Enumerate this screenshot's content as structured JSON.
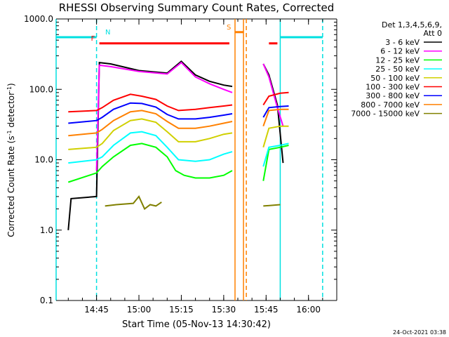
{
  "chart_data": {
    "type": "line",
    "title": "RHESSI Observing Summary Count Rates, Corrected",
    "xlabel": "Start Time (05-Nov-13 14:30:42)",
    "ylabel": "Corrected Count Rate (s⁻¹ detector⁻¹)",
    "ylabel_main": "Corrected Count Rate (s",
    "ylabel_sup1": "-1",
    "ylabel_mid": " detector",
    "ylabel_sup2": "-1",
    "ylabel_end": ")",
    "y_scale": "log",
    "ylim": [
      0.1,
      1000
    ],
    "xlim": [
      "14:30:42",
      "16:10:00"
    ],
    "x_ticks": [
      "14:45",
      "15:00",
      "15:15",
      "15:30",
      "15:45",
      "16:00"
    ],
    "y_ticks": [
      "0.1",
      "1.0",
      "10.0",
      "100.0",
      "1000.0"
    ],
    "legend_header": [
      "Det 1,3,4,5,6,9,",
      "Att 0"
    ],
    "legend_position": "right",
    "footer_date": "24-Oct-2021 03:38",
    "series": [
      {
        "name": "3 - 6 keV",
        "color": "#000000",
        "x": [
          "14:35",
          "14:36",
          "14:45",
          "14:46",
          "14:50",
          "15:00",
          "15:10",
          "15:15",
          "15:20",
          "15:25",
          "15:30",
          "15:33",
          "15:38",
          "15:44",
          "15:46",
          "15:49",
          "15:51"
        ],
        "y": [
          1.0,
          2.8,
          3.0,
          240,
          230,
          185,
          170,
          250,
          160,
          130,
          115,
          110,
          null,
          230,
          160,
          60,
          9
        ]
      },
      {
        "name": "6 - 12 keV",
        "color": "#ff00ff",
        "x": [
          "14:35",
          "14:45",
          "14:46",
          "14:50",
          "15:00",
          "15:10",
          "15:15",
          "15:20",
          "15:25",
          "15:30",
          "15:33",
          "15:38",
          "15:44",
          "15:46",
          "15:49",
          "15:51"
        ],
        "y": [
          null,
          7.0,
          220,
          210,
          180,
          165,
          240,
          150,
          120,
          100,
          90,
          null,
          230,
          150,
          55,
          30
        ]
      },
      {
        "name": "12 - 25 keV",
        "color": "#00ff00",
        "x": [
          "14:35",
          "14:45",
          "14:47",
          "14:51",
          "14:57",
          "15:01",
          "15:06",
          "15:10",
          "15:13",
          "15:16",
          "15:20",
          "15:25",
          "15:30",
          "15:33",
          "15:38",
          "15:44",
          "15:46",
          "15:50",
          "15:53"
        ],
        "y": [
          4.8,
          6.5,
          8,
          11,
          16,
          17,
          15,
          11,
          7,
          6,
          5.5,
          5.5,
          6,
          7,
          null,
          5,
          14,
          15,
          16
        ]
      },
      {
        "name": "25 - 50 keV",
        "color": "#00ffff",
        "x": [
          "14:35",
          "14:45",
          "14:47",
          "14:51",
          "14:57",
          "15:01",
          "15:06",
          "15:10",
          "15:14",
          "15:20",
          "15:25",
          "15:30",
          "15:33",
          "15:38",
          "15:44",
          "15:46",
          "15:50",
          "15:53"
        ],
        "y": [
          9,
          10,
          11,
          16,
          24,
          25,
          22,
          15,
          10,
          9.5,
          10,
          12,
          13,
          null,
          8,
          15,
          16,
          17
        ]
      },
      {
        "name": "50 - 100 keV",
        "color": "#d0d000",
        "x": [
          "14:35",
          "14:45",
          "14:47",
          "14:51",
          "14:57",
          "15:01",
          "15:06",
          "15:10",
          "15:14",
          "15:20",
          "15:25",
          "15:30",
          "15:33",
          "15:38",
          "15:44",
          "15:46",
          "15:50",
          "15:53"
        ],
        "y": [
          14,
          15,
          17,
          26,
          36,
          38,
          34,
          25,
          18,
          18,
          20,
          23,
          24,
          null,
          15,
          28,
          30,
          30
        ]
      },
      {
        "name": "100 - 300 keV",
        "color": "#ff0000",
        "x": [
          "14:35",
          "14:45",
          "14:47",
          "14:51",
          "14:57",
          "15:01",
          "15:06",
          "15:10",
          "15:14",
          "15:20",
          "15:25",
          "15:30",
          "15:33",
          "15:38",
          "15:44",
          "15:46",
          "15:50",
          "15:53"
        ],
        "y": [
          48,
          50,
          55,
          70,
          85,
          80,
          72,
          58,
          50,
          52,
          55,
          58,
          60,
          null,
          60,
          80,
          88,
          90
        ]
      },
      {
        "name": "300 - 800 keV",
        "color": "#0000ff",
        "x": [
          "14:35",
          "14:45",
          "14:47",
          "14:51",
          "14:57",
          "15:01",
          "15:06",
          "15:10",
          "15:14",
          "15:20",
          "15:25",
          "15:30",
          "15:33",
          "15:38",
          "15:44",
          "15:46",
          "15:50",
          "15:53"
        ],
        "y": [
          33,
          36,
          40,
          52,
          64,
          63,
          56,
          44,
          38,
          38,
          40,
          43,
          45,
          null,
          40,
          55,
          57,
          58
        ]
      },
      {
        "name": "800 - 7000 keV",
        "color": "#ff8000",
        "x": [
          "14:35",
          "14:45",
          "14:47",
          "14:51",
          "14:57",
          "15:01",
          "15:06",
          "15:10",
          "15:14",
          "15:20",
          "15:25",
          "15:30",
          "15:33",
          "15:38",
          "15:44",
          "15:46",
          "15:50",
          "15:53"
        ],
        "y": [
          22,
          24,
          27,
          36,
          48,
          50,
          45,
          35,
          28,
          28,
          30,
          33,
          35,
          null,
          30,
          50,
          52,
          52
        ]
      },
      {
        "name": "7000 - 15000 keV",
        "color": "#808000",
        "x": [
          "14:40",
          "14:43",
          "14:48",
          "14:52",
          "14:58",
          "15:00",
          "15:02",
          "15:04",
          "15:06",
          "15:08",
          "15:38",
          "15:44",
          "15:50"
        ],
        "y": [
          null,
          null,
          2.2,
          2.3,
          2.4,
          3.0,
          2.0,
          2.3,
          2.2,
          2.5,
          null,
          2.2,
          2.3
        ]
      }
    ],
    "flags": [
      {
        "label": "N",
        "color": "#00e0e0",
        "level_y": 550,
        "segments": [
          [
            "14:30:42",
            "14:45"
          ],
          [
            "15:50",
            "16:05"
          ]
        ]
      },
      {
        "label": "F",
        "color": "#ff0000",
        "level_y": 450,
        "segments": [
          [
            "14:46",
            "15:32"
          ],
          [
            "15:46",
            "15:49"
          ]
        ]
      },
      {
        "label": "S",
        "color": "#ff8000",
        "level_y": 650,
        "segments": [
          [
            "15:34",
            "15:37"
          ]
        ]
      }
    ],
    "vertical_markers": [
      {
        "x": "14:30:42",
        "color": "#00e0e0",
        "style": "solid"
      },
      {
        "x": "14:45",
        "color": "#00e0e0",
        "style": "dashed"
      },
      {
        "x": "15:34",
        "color": "#ff8000",
        "style": "solid"
      },
      {
        "x": "15:37",
        "color": "#ff8000",
        "style": "solid"
      },
      {
        "x": "15:38",
        "color": "#ff8000",
        "style": "dashed"
      },
      {
        "x": "15:50",
        "color": "#00e0e0",
        "style": "solid"
      },
      {
        "x": "16:05",
        "color": "#00e0e0",
        "style": "dashed"
      }
    ],
    "grid": false
  }
}
